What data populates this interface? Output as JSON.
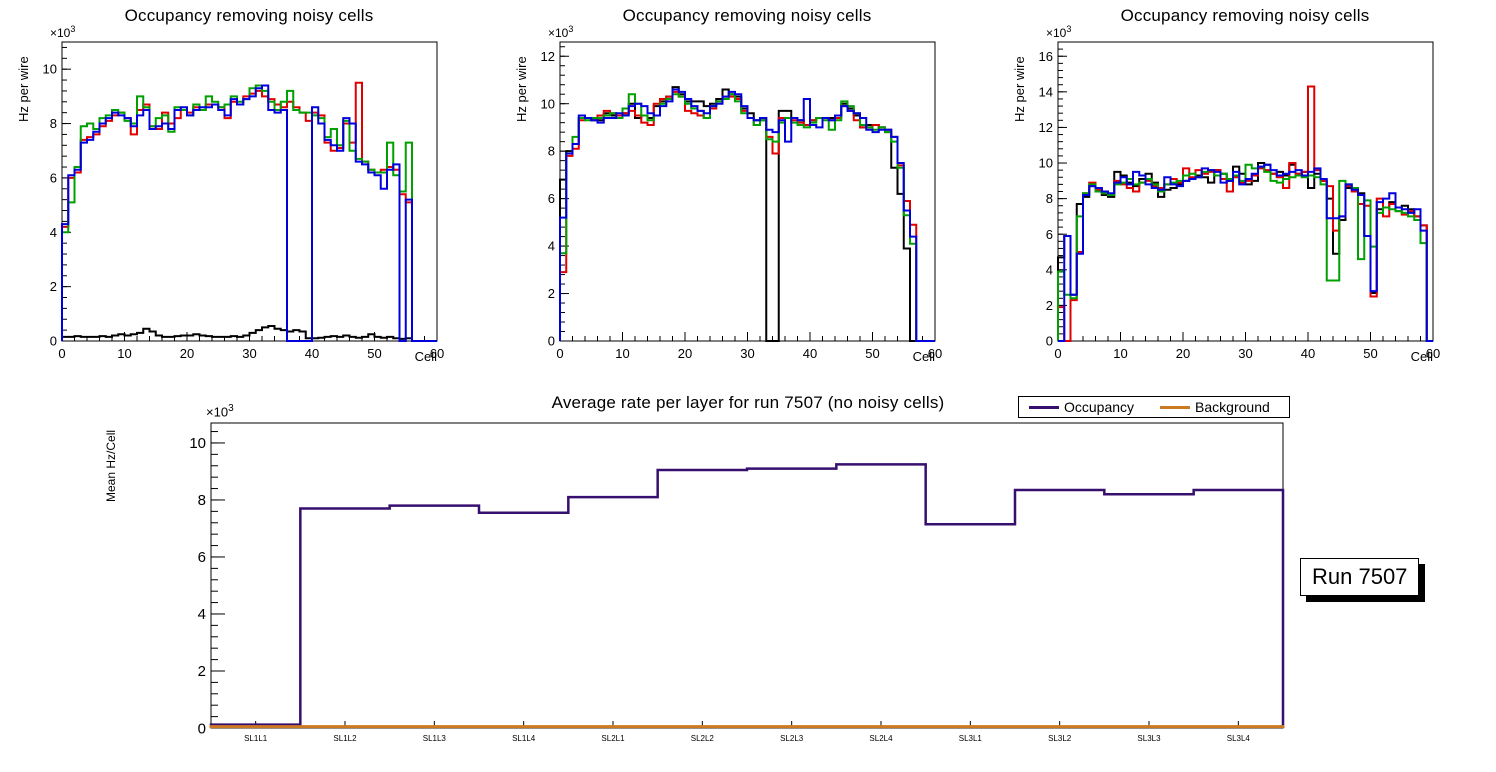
{
  "axis_exponent": {
    "base": "×10",
    "power": "3"
  },
  "run_label": "Run 7507",
  "chart_data": [
    {
      "type": "bar",
      "subtype": "step-histogram",
      "title": "Occupancy removing noisy cells",
      "xlabel": "Cell",
      "ylabel": "Hz per wire",
      "y_scale_exponent": "×10³",
      "xlim": [
        0,
        60
      ],
      "ylim": [
        0,
        11
      ],
      "xticks": [
        0,
        10,
        20,
        30,
        40,
        50,
        60
      ],
      "yticks": [
        0,
        2,
        4,
        6,
        8,
        10
      ],
      "x_minor_step": 2,
      "y_minor_step": 0.4,
      "grid": false,
      "series": [
        {
          "name": "black",
          "color": "#000000",
          "values": [
            0.15,
            0.15,
            0.18,
            0.15,
            0.15,
            0.15,
            0.18,
            0.15,
            0.2,
            0.25,
            0.2,
            0.25,
            0.3,
            0.45,
            0.35,
            0.2,
            0.15,
            0.15,
            0.18,
            0.2,
            0.2,
            0.25,
            0.2,
            0.18,
            0.15,
            0.15,
            0.15,
            0.18,
            0.15,
            0.2,
            0.3,
            0.4,
            0.5,
            0.55,
            0.45,
            0.4,
            0.35,
            0.4,
            0.35,
            0.1,
            0.1,
            0.12,
            0.15,
            0.18,
            0.15,
            0.2,
            0.15,
            0.12,
            0.15,
            0.25,
            0.15,
            0.12,
            0.15,
            0.1,
            0.08,
            0.1,
            0,
            0,
            0,
            0
          ]
        },
        {
          "name": "red",
          "color": "#e00000",
          "values": [
            4.2,
            6.0,
            6.2,
            7.4,
            7.5,
            7.6,
            7.9,
            8.1,
            8.3,
            8.4,
            8.2,
            7.6,
            8.5,
            8.7,
            7.9,
            7.8,
            8.4,
            8.0,
            8.2,
            8.5,
            8.4,
            8.6,
            8.5,
            8.7,
            8.7,
            8.6,
            8.2,
            8.8,
            8.7,
            9.0,
            9.1,
            9.2,
            9.0,
            8.9,
            8.7,
            8.6,
            8.8,
            8.6,
            8.4,
            8.1,
            8.4,
            8.3,
            7.3,
            7.0,
            7.1,
            8.0,
            7.3,
            9.5,
            6.6,
            6.3,
            6.2,
            6.3,
            6.4,
            6.3,
            5.4,
            5.1,
            0,
            0,
            0,
            0
          ]
        },
        {
          "name": "green",
          "color": "#00a000",
          "values": [
            4.0,
            5.1,
            6.4,
            7.9,
            8.0,
            7.8,
            8.2,
            8.3,
            8.5,
            8.4,
            8.1,
            8.0,
            9.0,
            8.6,
            7.9,
            8.2,
            8.3,
            7.7,
            8.6,
            8.5,
            8.3,
            8.7,
            8.5,
            9.0,
            8.8,
            8.6,
            8.7,
            9.0,
            8.8,
            8.9,
            9.3,
            9.4,
            9.2,
            8.8,
            8.5,
            8.8,
            9.2,
            8.5,
            8.4,
            8.4,
            8.3,
            8.2,
            7.5,
            7.8,
            7.2,
            8.1,
            7.0,
            6.7,
            6.6,
            6.3,
            6.2,
            6.2,
            7.3,
            6.1,
            5.5,
            7.3,
            0,
            0,
            0,
            0
          ]
        },
        {
          "name": "blue",
          "color": "#0000dd",
          "values": [
            4.3,
            6.1,
            6.3,
            7.3,
            7.4,
            7.7,
            8.0,
            8.2,
            8.4,
            8.3,
            8.2,
            7.9,
            8.3,
            8.5,
            7.8,
            7.9,
            8.0,
            7.8,
            8.5,
            8.6,
            8.3,
            8.5,
            8.6,
            8.6,
            8.7,
            8.5,
            8.3,
            8.9,
            8.7,
            8.9,
            9.0,
            9.3,
            9.4,
            8.5,
            8.4,
            8.5,
            0,
            0,
            0,
            0,
            8.6,
            8.0,
            7.4,
            7.2,
            7.0,
            8.2,
            8.0,
            6.6,
            6.5,
            6.2,
            6.1,
            5.6,
            6.3,
            6.5,
            0,
            5.2,
            0,
            0,
            0,
            0
          ]
        }
      ]
    },
    {
      "type": "bar",
      "subtype": "step-histogram",
      "title": "Occupancy removing noisy cells",
      "xlabel": "Cell",
      "ylabel": "Hz per wire",
      "y_scale_exponent": "×10³",
      "xlim": [
        0,
        60
      ],
      "ylim": [
        0,
        12.6
      ],
      "xticks": [
        0,
        10,
        20,
        30,
        40,
        50,
        60
      ],
      "yticks": [
        0,
        2,
        4,
        6,
        8,
        10,
        12
      ],
      "x_minor_step": 2,
      "y_minor_step": 0.4,
      "grid": false,
      "series": [
        {
          "name": "black",
          "color": "#000000",
          "values": [
            6.8,
            8.0,
            8.3,
            9.4,
            9.4,
            9.3,
            9.3,
            9.6,
            9.5,
            9.5,
            9.6,
            10.0,
            9.4,
            9.5,
            9.4,
            9.9,
            10.1,
            10.3,
            10.7,
            10.4,
            10.1,
            10.1,
            10.1,
            9.9,
            10.0,
            10.2,
            10.6,
            10.4,
            10.3,
            9.8,
            9.6,
            9.3,
            9.3,
            0,
            0,
            9.7,
            9.7,
            9.4,
            9.3,
            9.1,
            9.3,
            9.4,
            9.4,
            9.4,
            9.5,
            10.0,
            9.8,
            9.5,
            9.0,
            9.1,
            9.1,
            9.0,
            8.9,
            7.3,
            6.2,
            3.9,
            0,
            0,
            0,
            0
          ]
        },
        {
          "name": "red",
          "color": "#e00000",
          "values": [
            2.9,
            7.8,
            8.1,
            9.3,
            9.4,
            9.3,
            9.5,
            9.7,
            9.6,
            9.5,
            9.6,
            9.7,
            9.5,
            9.2,
            9.1,
            10.0,
            10.2,
            10.3,
            10.5,
            10.3,
            9.7,
            9.6,
            9.5,
            9.4,
            9.8,
            10.1,
            10.3,
            10.3,
            10.2,
            9.7,
            9.4,
            9.1,
            9.4,
            8.6,
            7.9,
            9.4,
            9.4,
            9.3,
            9.2,
            9.1,
            9.3,
            9.4,
            9.4,
            9.3,
            9.4,
            9.9,
            9.7,
            9.3,
            9.0,
            9.0,
            9.1,
            9.0,
            8.8,
            8.6,
            7.4,
            5.9,
            4.9,
            0,
            0,
            0
          ]
        },
        {
          "name": "green",
          "color": "#00a000",
          "values": [
            3.7,
            7.9,
            8.6,
            9.4,
            9.3,
            9.4,
            9.4,
            9.5,
            9.6,
            9.4,
            9.8,
            10.4,
            10.0,
            9.5,
            9.3,
            9.5,
            10.0,
            10.2,
            10.4,
            10.3,
            10.0,
            9.8,
            9.7,
            9.4,
            9.9,
            10.1,
            10.2,
            10.4,
            10.1,
            9.6,
            9.4,
            9.1,
            9.3,
            8.5,
            8.4,
            9.2,
            9.4,
            9.2,
            9.1,
            9.0,
            9.2,
            9.4,
            9.3,
            8.9,
            9.3,
            10.1,
            9.9,
            9.6,
            9.1,
            9.0,
            8.9,
            9.0,
            8.8,
            8.4,
            7.3,
            5.3,
            4.1,
            0,
            0,
            0
          ]
        },
        {
          "name": "blue",
          "color": "#0000dd",
          "values": [
            5.2,
            7.9,
            8.3,
            9.5,
            9.4,
            9.3,
            9.2,
            9.4,
            9.4,
            9.6,
            9.5,
            9.9,
            10.0,
            9.9,
            9.6,
            9.5,
            9.9,
            10.1,
            10.6,
            10.5,
            10.2,
            9.9,
            9.7,
            9.6,
            9.9,
            10.0,
            10.3,
            10.5,
            10.4,
            9.9,
            9.4,
            9.3,
            9.4,
            8.9,
            8.8,
            9.3,
            8.4,
            9.4,
            9.3,
            10.2,
            9.1,
            9.0,
            9.4,
            9.3,
            9.5,
            9.9,
            9.7,
            9.6,
            9.4,
            8.9,
            8.8,
            8.9,
            8.9,
            8.6,
            7.5,
            5.5,
            4.4,
            0,
            0,
            0
          ]
        }
      ]
    },
    {
      "type": "bar",
      "subtype": "step-histogram",
      "title": "Occupancy removing noisy cells",
      "xlabel": "Cell",
      "ylabel": "Hz per wire",
      "y_scale_exponent": "×10³",
      "xlim": [
        0,
        60
      ],
      "ylim": [
        0,
        16.8
      ],
      "xticks": [
        0,
        10,
        20,
        30,
        40,
        50,
        60
      ],
      "yticks": [
        0,
        2,
        4,
        6,
        8,
        10,
        12,
        14,
        16
      ],
      "x_minor_step": 2,
      "y_minor_step": 0.4,
      "grid": false,
      "series": [
        {
          "name": "black",
          "color": "#000000",
          "values": [
            4.7,
            5.9,
            2.6,
            7.7,
            8.1,
            8.7,
            8.6,
            8.2,
            8.1,
            9.5,
            9.3,
            8.9,
            8.7,
            9.1,
            9.4,
            8.9,
            8.1,
            8.5,
            8.6,
            8.8,
            9.0,
            9.1,
            9.3,
            9.2,
            8.9,
            9.6,
            9.4,
            9.0,
            9.8,
            9.4,
            8.8,
            9.0,
            10.0,
            9.9,
            9.4,
            9.5,
            9.3,
            9.9,
            9.4,
            9.5,
            8.6,
            9.4,
            9.0,
            8.0,
            4.9,
            6.8,
            8.6,
            8.5,
            8.3,
            5.9,
            2.7,
            7.4,
            7.5,
            7.8,
            7.5,
            7.6,
            7.4,
            7.0,
            6.5,
            0
          ]
        },
        {
          "name": "red",
          "color": "#e00000",
          "values": [
            1.9,
            0,
            2.3,
            5.0,
            8.3,
            8.9,
            8.5,
            8.3,
            8.2,
            9.0,
            8.8,
            8.6,
            8.4,
            8.9,
            9.0,
            8.7,
            8.6,
            8.8,
            9.1,
            8.9,
            9.7,
            9.2,
            9.6,
            9.4,
            9.5,
            9.6,
            9.1,
            8.4,
            9.2,
            8.9,
            9.0,
            9.3,
            9.7,
            9.6,
            9.4,
            9.2,
            8.6,
            10.0,
            9.4,
            9.5,
            14.3,
            9.6,
            9.0,
            8.7,
            6.2,
            7.0,
            8.7,
            8.4,
            7.7,
            7.6,
            2.5,
            8.0,
            7.0,
            7.7,
            7.3,
            7.1,
            7.3,
            7.0,
            6.5,
            0
          ]
        },
        {
          "name": "green",
          "color": "#00a000",
          "values": [
            3.9,
            2.6,
            2.4,
            7.0,
            8.3,
            8.8,
            8.4,
            8.3,
            8.2,
            8.8,
            8.9,
            9.1,
            8.8,
            8.9,
            9.1,
            8.8,
            8.4,
            8.8,
            8.9,
            9.0,
            9.3,
            9.4,
            9.2,
            9.5,
            9.6,
            9.3,
            9.4,
            9.1,
            9.3,
            9.0,
            9.9,
            9.7,
            9.8,
            9.5,
            9.0,
            8.9,
            9.1,
            9.2,
            9.3,
            9.2,
            9.3,
            9.2,
            8.8,
            3.4,
            3.4,
            9.0,
            8.8,
            8.6,
            4.6,
            7.9,
            5.3,
            7.2,
            7.5,
            7.4,
            7.3,
            7.2,
            7.0,
            6.8,
            5.5,
            0
          ]
        },
        {
          "name": "blue",
          "color": "#0000dd",
          "values": [
            0,
            5.9,
            2.6,
            4.9,
            8.2,
            8.7,
            8.6,
            8.4,
            8.3,
            8.9,
            9.2,
            8.8,
            9.5,
            9.3,
            8.8,
            8.6,
            8.5,
            9.2,
            8.8,
            8.7,
            9.0,
            9.1,
            9.2,
            9.7,
            9.6,
            9.5,
            8.9,
            9.0,
            9.5,
            8.8,
            9.1,
            9.4,
            9.8,
            9.9,
            9.6,
            9.3,
            9.4,
            9.5,
            9.6,
            9.3,
            9.5,
            9.7,
            9.1,
            6.9,
            6.9,
            7.0,
            8.8,
            8.5,
            8.2,
            5.9,
            2.8,
            7.8,
            8.0,
            8.3,
            7.5,
            7.4,
            7.2,
            7.4,
            6.2,
            0
          ]
        }
      ]
    },
    {
      "type": "line",
      "subtype": "step-line",
      "title": "Average rate per layer for run 7507 (no noisy cells)",
      "xlabel": "",
      "ylabel": "Mean Hz/Cell",
      "y_scale_exponent": "×10³",
      "categories": [
        "SL1L1",
        "SL1L2",
        "SL1L3",
        "SL1L4",
        "SL2L1",
        "SL2L2",
        "SL2L3",
        "SL2L4",
        "SL3L1",
        "SL3L2",
        "SL3L3",
        "SL3L4"
      ],
      "ylim": [
        0,
        10.7
      ],
      "yticks": [
        0,
        2,
        4,
        6,
        8,
        10
      ],
      "y_minor_step": 0.4,
      "grid": false,
      "legend_position": "top-right",
      "series": [
        {
          "name": "Occupancy",
          "color": "#370f6e",
          "width": 2.5,
          "values": [
            0.12,
            7.7,
            7.8,
            7.55,
            8.1,
            9.05,
            9.1,
            9.25,
            7.15,
            8.35,
            8.2,
            8.35
          ]
        },
        {
          "name": "Background",
          "color": "#cc7a22",
          "width": 3,
          "values": [
            0.05,
            0.05,
            0.05,
            0.05,
            0.05,
            0.05,
            0.05,
            0.05,
            0.05,
            0.05,
            0.05,
            0.05
          ]
        }
      ]
    }
  ]
}
